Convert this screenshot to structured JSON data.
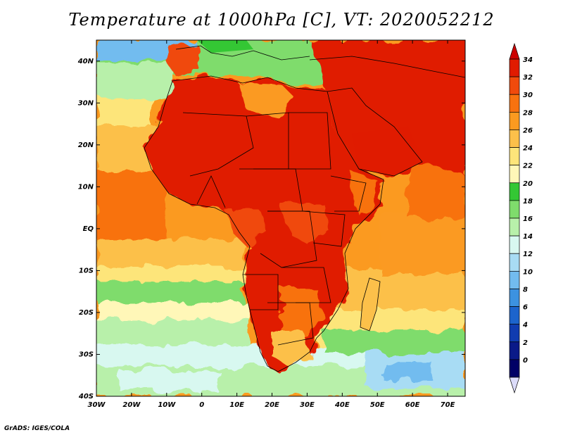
{
  "title": "Temperature at 1000hPa [C], VT: 2020052212",
  "credit": "GrADS: IGES/COLA",
  "map": {
    "region": "Africa and surrounding oceans",
    "lon_range": [
      -30,
      75
    ],
    "lat_range": [
      -40,
      45
    ],
    "lon_labels": [
      "30W",
      "20W",
      "10W",
      "0",
      "10E",
      "20E",
      "30E",
      "40E",
      "50E",
      "60E",
      "70E"
    ],
    "lat_labels": [
      "40N",
      "30N",
      "20N",
      "10N",
      "EQ",
      "10S",
      "20S",
      "30S",
      "40S"
    ],
    "lon_ticks": [
      -30,
      -20,
      -10,
      0,
      10,
      20,
      30,
      40,
      50,
      60,
      70
    ],
    "lat_ticks": [
      40,
      30,
      20,
      10,
      0,
      -10,
      -20,
      -30,
      -40
    ]
  },
  "colorbar": {
    "labels": [
      "34",
      "32",
      "30",
      "28",
      "26",
      "24",
      "22",
      "20",
      "18",
      "16",
      "14",
      "12",
      "10",
      "8",
      "6",
      "4",
      "2",
      "0"
    ],
    "colors": [
      "#e01b00",
      "#f04a0c",
      "#f8720f",
      "#fb9a20",
      "#fcc04a",
      "#fde57a",
      "#fff7b8",
      "#34c734",
      "#7fdc6c",
      "#b8f0aa",
      "#d8f8f0",
      "#a8dcf4",
      "#72bcef",
      "#3c92e0",
      "#1c64cc",
      "#103cb0",
      "#0a1a88",
      "#000066"
    ],
    "top_arrow": "#cc0000",
    "bottom_arrow": "#dcdcfa"
  }
}
